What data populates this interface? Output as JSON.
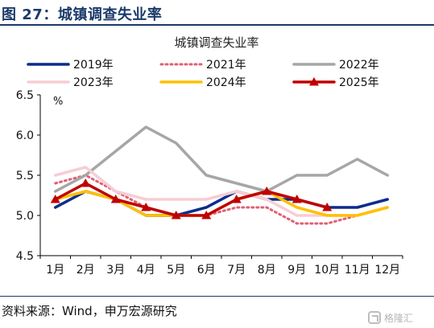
{
  "figure": {
    "title": "图 27：城镇调查失业率",
    "source": "资料来源：Wind，申万宏源研究",
    "watermark_text": "格隆汇"
  },
  "chart_data": {
    "type": "line",
    "title": "城镇调查失业率",
    "ylabel": "%",
    "xlabel": "",
    "ylim": [
      4.5,
      6.5
    ],
    "yticks": [
      "4.5",
      "5.0",
      "5.5",
      "6.0",
      "6.5"
    ],
    "categories": [
      "1月",
      "2月",
      "3月",
      "4月",
      "5月",
      "6月",
      "7月",
      "8月",
      "9月",
      "10月",
      "11月",
      "12月"
    ],
    "grid": false,
    "legend_position": "top",
    "series": [
      {
        "name": "2019年",
        "color": "#0a2d8c",
        "style": "solid",
        "marker": "none",
        "values": [
          5.1,
          5.3,
          5.2,
          5.0,
          5.0,
          5.1,
          5.3,
          5.2,
          5.2,
          5.1,
          5.1,
          5.2
        ]
      },
      {
        "name": "2021年",
        "color": "#e06070",
        "style": "dotted",
        "marker": "none",
        "values": [
          5.4,
          5.5,
          5.3,
          5.1,
          5.0,
          5.0,
          5.1,
          5.1,
          4.9,
          4.9,
          5.0,
          5.1
        ]
      },
      {
        "name": "2022年",
        "color": "#a6a6a6",
        "style": "solid",
        "marker": "none",
        "values": [
          5.3,
          5.5,
          5.8,
          6.1,
          5.9,
          5.5,
          5.4,
          5.3,
          5.5,
          5.5,
          5.7,
          5.5
        ]
      },
      {
        "name": "2023年",
        "color": "#f7cdd4",
        "style": "solid",
        "marker": "none",
        "values": [
          5.5,
          5.6,
          5.3,
          5.2,
          5.2,
          5.2,
          5.3,
          5.2,
          5.0,
          5.0,
          5.0,
          5.1
        ]
      },
      {
        "name": "2024年",
        "color": "#ffc000",
        "style": "solid",
        "marker": "none",
        "values": [
          5.2,
          5.3,
          5.2,
          5.0,
          5.0,
          5.0,
          5.2,
          5.3,
          5.1,
          5.0,
          5.0,
          5.1
        ]
      },
      {
        "name": "2025年",
        "color": "#c00000",
        "style": "solid",
        "marker": "triangle",
        "values": [
          5.2,
          5.4,
          5.2,
          5.1,
          5.0,
          5.0,
          5.2,
          5.3,
          5.2,
          5.1,
          null,
          null
        ]
      }
    ]
  }
}
